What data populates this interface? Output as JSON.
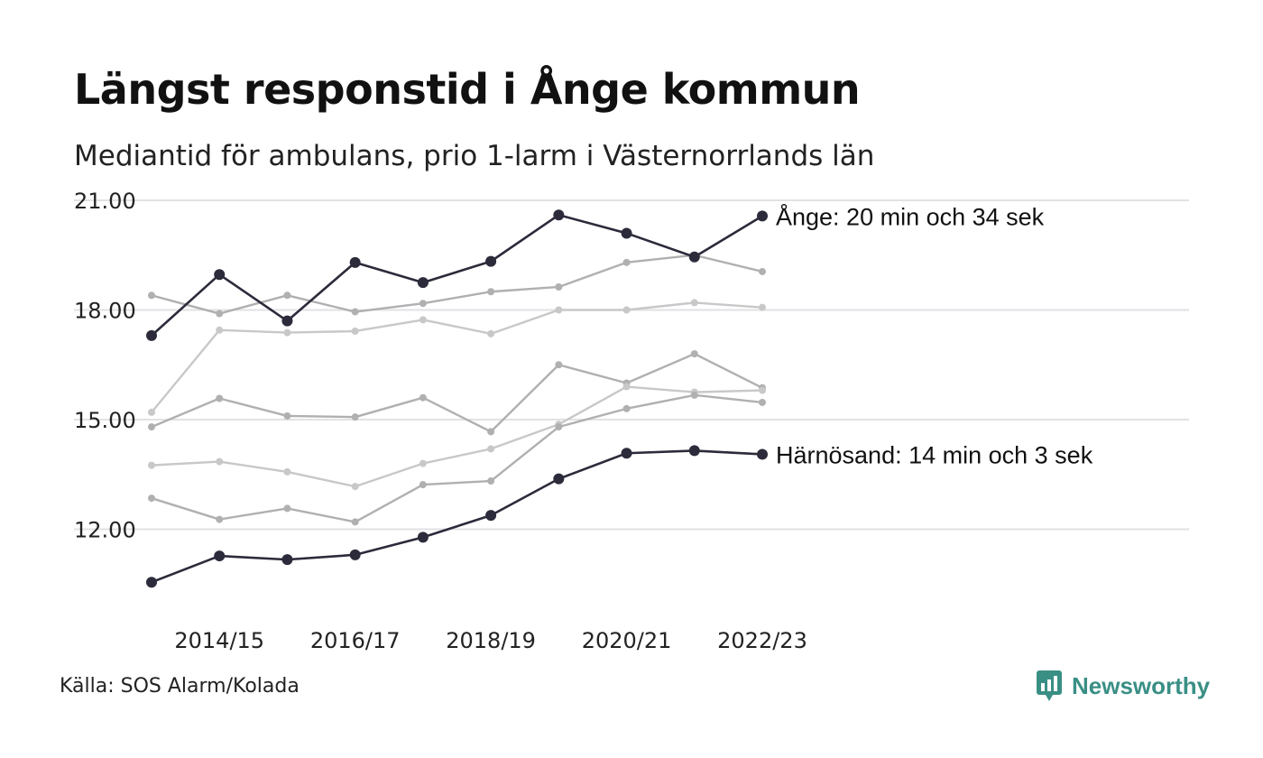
{
  "title": "Längst responstid i Ånge kommun",
  "subtitle": "Mediantid för ambulans, prio 1-larm i Västernorrlands län",
  "source": "Källa: SOS Alarm/Kolada",
  "brand": {
    "name": "Newsworthy",
    "icon": "newsworthy-logo-icon",
    "color": "#3a8f85"
  },
  "chart_data": {
    "type": "line",
    "x": [
      "2013/14",
      "2014/15",
      "2015/16",
      "2016/17",
      "2017/18",
      "2018/19",
      "2019/20",
      "2020/21",
      "2021/22",
      "2022/23"
    ],
    "x_tick_labels": [
      "2014/15",
      "2016/17",
      "2018/19",
      "2020/21",
      "2022/23"
    ],
    "y_tick_labels": [
      "21.00",
      "18.00",
      "15.00",
      "12.00"
    ],
    "yticks": [
      21,
      18,
      15,
      12
    ],
    "ylim": [
      10.0,
      21.0
    ],
    "grid": true,
    "highlight_color": "#2b2b3b",
    "series": [
      {
        "name": "Ånge",
        "label": "Ånge: 20 min och 34 sek",
        "highlight": true,
        "values": [
          17.3,
          18.97,
          17.7,
          19.3,
          18.75,
          19.33,
          20.6,
          20.1,
          19.45,
          20.57
        ]
      },
      {
        "name": "Härnösand",
        "label": "Härnösand: 14 min och 3 sek",
        "highlight": true,
        "values": [
          10.55,
          11.27,
          11.17,
          11.3,
          11.78,
          12.38,
          13.38,
          14.08,
          14.15,
          14.05
        ]
      },
      {
        "color": "#b0b0b0",
        "values": [
          18.4,
          17.9,
          18.4,
          17.95,
          18.18,
          18.5,
          18.63,
          19.3,
          19.5,
          19.05
        ]
      },
      {
        "color": "#c8c8c8",
        "values": [
          15.2,
          17.45,
          17.38,
          17.42,
          17.73,
          17.35,
          18.0,
          18.0,
          18.2,
          18.07
        ]
      },
      {
        "color": "#b0b0b0",
        "values": [
          14.8,
          15.58,
          15.1,
          15.07,
          15.6,
          14.67,
          16.5,
          16.0,
          16.8,
          15.87
        ]
      },
      {
        "color": "#c8c8c8",
        "values": [
          13.75,
          13.85,
          13.57,
          13.17,
          13.8,
          14.2,
          14.87,
          15.9,
          15.75,
          15.8
        ]
      },
      {
        "color": "#b0b0b0",
        "values": [
          12.85,
          12.27,
          12.57,
          12.2,
          13.22,
          13.32,
          14.8,
          15.3,
          15.67,
          15.47
        ]
      }
    ]
  }
}
